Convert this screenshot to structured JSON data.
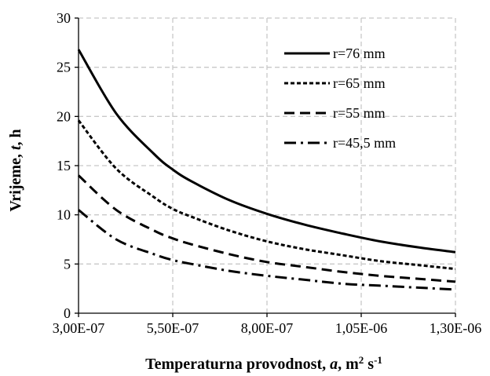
{
  "chart_data": {
    "type": "line",
    "title": "",
    "xlabel_parts": {
      "main": "Temperaturna provodnost, ",
      "var": "a",
      "sep": ",  m",
      "sup1": "2",
      "mid": " s",
      "sup2": "-1"
    },
    "ylabel_parts": {
      "main": "Vrijeme, ",
      "var": "t",
      "end": ", h"
    },
    "xlim": [
      3e-07,
      1.3e-06
    ],
    "ylim": [
      0,
      30
    ],
    "x_ticks": [
      3e-07,
      5.5e-07,
      8e-07,
      1.05e-06,
      1.3e-06
    ],
    "x_tick_labels": [
      "3,00E-07",
      "5,50E-07",
      "8,00E-07",
      "1,05E-06",
      "1,30E-06"
    ],
    "y_ticks": [
      0,
      5,
      10,
      15,
      20,
      25,
      30
    ],
    "y_tick_labels": [
      "0",
      "5",
      "10",
      "15",
      "20",
      "25",
      "30"
    ],
    "grid": true,
    "legend_position": "top-right",
    "x": [
      3e-07,
      4e-07,
      5e-07,
      5.5e-07,
      6e-07,
      7e-07,
      8e-07,
      9e-07,
      1e-06,
      1.1e-06,
      1.2e-06,
      1.3e-06
    ],
    "series": [
      {
        "name": "r=76 mm",
        "dash": "solid",
        "values": [
          26.8,
          20.3,
          16.2,
          14.6,
          13.4,
          11.5,
          10.1,
          9.0,
          8.1,
          7.3,
          6.7,
          6.2
        ]
      },
      {
        "name": "r=65 mm",
        "dash": "dotted",
        "values": [
          19.6,
          14.7,
          11.8,
          10.6,
          9.8,
          8.4,
          7.3,
          6.5,
          5.9,
          5.3,
          4.9,
          4.5
        ]
      },
      {
        "name": "r=55 mm",
        "dash": "dashed",
        "values": [
          14.0,
          10.5,
          8.4,
          7.6,
          7.0,
          6.0,
          5.2,
          4.7,
          4.2,
          3.8,
          3.5,
          3.2
        ]
      },
      {
        "name": "r=45,5 mm",
        "dash": "dashdot",
        "values": [
          10.5,
          7.5,
          6.0,
          5.4,
          5.0,
          4.3,
          3.8,
          3.4,
          3.0,
          2.8,
          2.6,
          2.4
        ]
      }
    ]
  }
}
